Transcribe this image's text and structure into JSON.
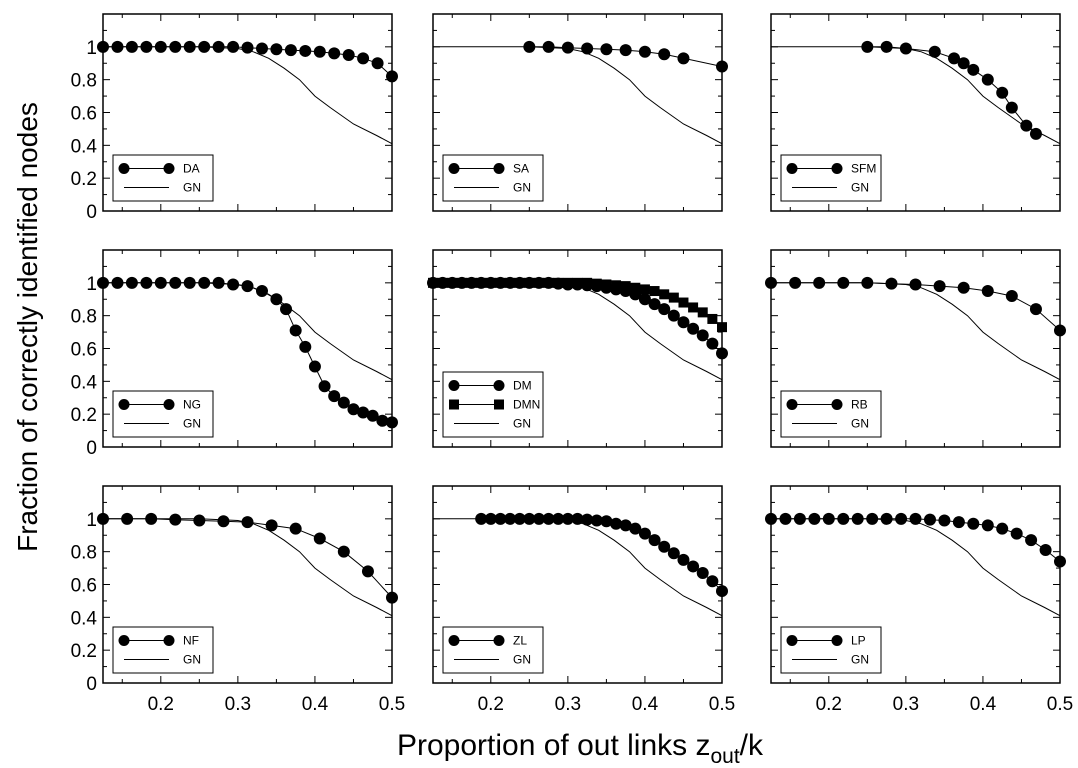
{
  "chart_data": {
    "type": "line",
    "layout": "3x3 grid of panels",
    "xlabel_main": "Proportion of out links z",
    "xlabel_sub": "out",
    "xlabel_tail": "/k",
    "ylabel": "Fraction of correctly identified nodes",
    "xlim": [
      0.125,
      0.5
    ],
    "ylim": [
      0,
      1.2
    ],
    "xticks": [
      0.2,
      0.3,
      0.4,
      0.5
    ],
    "xtick_labels": [
      "0.2",
      "0.3",
      "0.4",
      "0.5"
    ],
    "yticks": [
      0,
      0.2,
      0.4,
      0.6,
      0.8,
      1
    ],
    "ytick_labels": [
      "0",
      "0.2",
      "0.4",
      "0.6",
      "0.8",
      "1"
    ],
    "reference_series": {
      "name": "GN",
      "x": [
        0.125,
        0.15,
        0.2,
        0.25,
        0.3,
        0.32,
        0.34,
        0.36,
        0.38,
        0.4,
        0.42,
        0.45,
        0.48,
        0.5
      ],
      "y": [
        1.0,
        1.0,
        1.0,
        1.0,
        0.99,
        0.97,
        0.93,
        0.87,
        0.8,
        0.7,
        0.63,
        0.53,
        0.46,
        0.41
      ]
    },
    "panels": [
      {
        "series": [
          {
            "name": "DA",
            "marker": "circle",
            "x": [
              0.125,
              0.1438,
              0.1625,
              0.1813,
              0.2,
              0.2188,
              0.2375,
              0.2563,
              0.275,
              0.2938,
              0.3125,
              0.3313,
              0.35,
              0.3688,
              0.3875,
              0.4063,
              0.425,
              0.4438,
              0.4625,
              0.4813,
              0.5
            ],
            "y": [
              1.0,
              1.0,
              1.0,
              1.0,
              1.0,
              1.0,
              1.0,
              1.0,
              1.0,
              1.0,
              0.995,
              0.99,
              0.985,
              0.98,
              0.975,
              0.97,
              0.96,
              0.95,
              0.93,
              0.9,
              0.82
            ]
          }
        ]
      },
      {
        "series": [
          {
            "name": "SA",
            "marker": "circle",
            "x": [
              0.25,
              0.275,
              0.3,
              0.325,
              0.35,
              0.375,
              0.4,
              0.425,
              0.45,
              0.5
            ],
            "y": [
              1.0,
              1.0,
              0.995,
              0.99,
              0.985,
              0.98,
              0.97,
              0.955,
              0.93,
              0.88
            ]
          }
        ]
      },
      {
        "series": [
          {
            "name": "SFM",
            "marker": "circle",
            "x": [
              0.25,
              0.275,
              0.3,
              0.3375,
              0.3625,
              0.375,
              0.3875,
              0.4063,
              0.425,
              0.4375,
              0.4563,
              0.4688
            ],
            "y": [
              1.0,
              1.0,
              0.99,
              0.97,
              0.93,
              0.9,
              0.86,
              0.8,
              0.72,
              0.63,
              0.52,
              0.47
            ]
          }
        ]
      },
      {
        "series": [
          {
            "name": "NG",
            "marker": "circle",
            "x": [
              0.125,
              0.1438,
              0.1625,
              0.1813,
              0.2,
              0.2188,
              0.2375,
              0.2563,
              0.275,
              0.2938,
              0.3125,
              0.3313,
              0.35,
              0.3625,
              0.375,
              0.3875,
              0.4,
              0.4125,
              0.425,
              0.4375,
              0.45,
              0.4625,
              0.475,
              0.4875,
              0.5
            ],
            "y": [
              1.0,
              1.0,
              1.0,
              1.0,
              1.0,
              1.0,
              1.0,
              1.0,
              1.0,
              0.99,
              0.98,
              0.95,
              0.9,
              0.84,
              0.71,
              0.61,
              0.49,
              0.37,
              0.31,
              0.27,
              0.23,
              0.21,
              0.19,
              0.16,
              0.15
            ]
          }
        ]
      },
      {
        "series": [
          {
            "name": "DM",
            "marker": "circle",
            "x": [
              0.125,
              0.1375,
              0.15,
              0.1625,
              0.175,
              0.1875,
              0.2,
              0.2125,
              0.225,
              0.2375,
              0.25,
              0.2625,
              0.275,
              0.2875,
              0.3,
              0.3125,
              0.325,
              0.3375,
              0.35,
              0.3625,
              0.375,
              0.3875,
              0.4,
              0.4125,
              0.425,
              0.4375,
              0.45,
              0.4625,
              0.475,
              0.4875,
              0.5
            ],
            "y": [
              1.0,
              1.0,
              1.0,
              1.0,
              1.0,
              1.0,
              1.0,
              1.0,
              1.0,
              1.0,
              1.0,
              1.0,
              1.0,
              0.995,
              0.99,
              0.99,
              0.985,
              0.98,
              0.97,
              0.96,
              0.95,
              0.93,
              0.9,
              0.87,
              0.84,
              0.8,
              0.76,
              0.72,
              0.68,
              0.63,
              0.57
            ]
          },
          {
            "name": "DMN",
            "marker": "square",
            "x": [
              0.125,
              0.1375,
              0.15,
              0.1625,
              0.175,
              0.1875,
              0.2,
              0.2125,
              0.225,
              0.2375,
              0.25,
              0.2625,
              0.275,
              0.2875,
              0.3,
              0.3125,
              0.325,
              0.3375,
              0.35,
              0.3625,
              0.375,
              0.3875,
              0.4,
              0.4125,
              0.425,
              0.4375,
              0.45,
              0.4625,
              0.475,
              0.4875,
              0.5
            ],
            "y": [
              1.0,
              1.0,
              1.0,
              1.0,
              1.0,
              1.0,
              1.0,
              1.0,
              1.0,
              1.0,
              1.0,
              1.0,
              1.0,
              1.0,
              1.0,
              1.0,
              1.0,
              0.995,
              0.99,
              0.985,
              0.98,
              0.97,
              0.96,
              0.95,
              0.93,
              0.91,
              0.88,
              0.85,
              0.82,
              0.78,
              0.73
            ]
          }
        ]
      },
      {
        "series": [
          {
            "name": "RB",
            "marker": "circle",
            "x": [
              0.125,
              0.1563,
              0.1875,
              0.2188,
              0.25,
              0.2813,
              0.3125,
              0.3438,
              0.375,
              0.4063,
              0.4375,
              0.4688,
              0.5
            ],
            "y": [
              1.0,
              1.0,
              1.0,
              1.0,
              1.0,
              0.995,
              0.99,
              0.98,
              0.97,
              0.95,
              0.92,
              0.84,
              0.71
            ]
          }
        ]
      },
      {
        "series": [
          {
            "name": "NF",
            "marker": "circle",
            "x": [
              0.125,
              0.1563,
              0.1875,
              0.2188,
              0.25,
              0.2813,
              0.3125,
              0.3438,
              0.375,
              0.4063,
              0.4375,
              0.4688,
              0.5
            ],
            "y": [
              1.0,
              1.0,
              1.0,
              0.995,
              0.99,
              0.985,
              0.98,
              0.96,
              0.94,
              0.88,
              0.8,
              0.68,
              0.52
            ]
          }
        ]
      },
      {
        "series": [
          {
            "name": "ZL",
            "marker": "circle",
            "x": [
              0.1875,
              0.2,
              0.2125,
              0.225,
              0.2375,
              0.25,
              0.2625,
              0.275,
              0.2875,
              0.3,
              0.3125,
              0.325,
              0.3375,
              0.35,
              0.3625,
              0.375,
              0.3875,
              0.4,
              0.4125,
              0.425,
              0.4375,
              0.45,
              0.4625,
              0.475,
              0.4875,
              0.5
            ],
            "y": [
              1.0,
              1.0,
              1.0,
              1.0,
              1.0,
              1.0,
              1.0,
              1.0,
              1.0,
              1.0,
              1.0,
              0.995,
              0.99,
              0.985,
              0.97,
              0.96,
              0.94,
              0.91,
              0.87,
              0.83,
              0.79,
              0.75,
              0.71,
              0.67,
              0.62,
              0.56
            ]
          }
        ]
      },
      {
        "series": [
          {
            "name": "LP",
            "marker": "circle",
            "x": [
              0.125,
              0.1438,
              0.1625,
              0.1813,
              0.2,
              0.2188,
              0.2375,
              0.2563,
              0.275,
              0.2938,
              0.3125,
              0.3313,
              0.35,
              0.3688,
              0.3875,
              0.4063,
              0.425,
              0.4438,
              0.4625,
              0.4813,
              0.5
            ],
            "y": [
              1.0,
              1.0,
              1.0,
              1.0,
              1.0,
              1.0,
              1.0,
              1.0,
              1.0,
              1.0,
              1.0,
              0.995,
              0.99,
              0.98,
              0.97,
              0.96,
              0.94,
              0.91,
              0.87,
              0.81,
              0.74
            ]
          }
        ]
      }
    ]
  }
}
